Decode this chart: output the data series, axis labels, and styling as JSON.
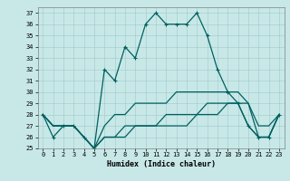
{
  "xlabel": "Humidex (Indice chaleur)",
  "bg_color": "#c8e8e8",
  "line_color": "#006060",
  "xlim": [
    -0.5,
    23.5
  ],
  "ylim": [
    25,
    37.5
  ],
  "yticks": [
    25,
    26,
    27,
    28,
    29,
    30,
    31,
    32,
    33,
    34,
    35,
    36,
    37
  ],
  "xticks": [
    0,
    1,
    2,
    3,
    4,
    5,
    6,
    7,
    8,
    9,
    10,
    11,
    12,
    13,
    14,
    15,
    16,
    17,
    18,
    19,
    20,
    21,
    22,
    23
  ],
  "series1": [
    28,
    26,
    27,
    27,
    26,
    25,
    32,
    31,
    34,
    33,
    36,
    37,
    36,
    36,
    36,
    37,
    35,
    32,
    30,
    29,
    27,
    26,
    26,
    28
  ],
  "series2": [
    28,
    27,
    27,
    27,
    26,
    25,
    27,
    28,
    28,
    29,
    29,
    29,
    29,
    30,
    30,
    30,
    30,
    30,
    30,
    30,
    29,
    27,
    27,
    28
  ],
  "series3": [
    28,
    27,
    27,
    27,
    26,
    25,
    26,
    26,
    27,
    27,
    27,
    27,
    28,
    28,
    28,
    28,
    29,
    29,
    29,
    29,
    29,
    26,
    26,
    28
  ],
  "series4": [
    28,
    27,
    27,
    27,
    26,
    25,
    26,
    26,
    26,
    27,
    27,
    27,
    27,
    27,
    27,
    28,
    28,
    28,
    29,
    29,
    27,
    26,
    26,
    28
  ]
}
